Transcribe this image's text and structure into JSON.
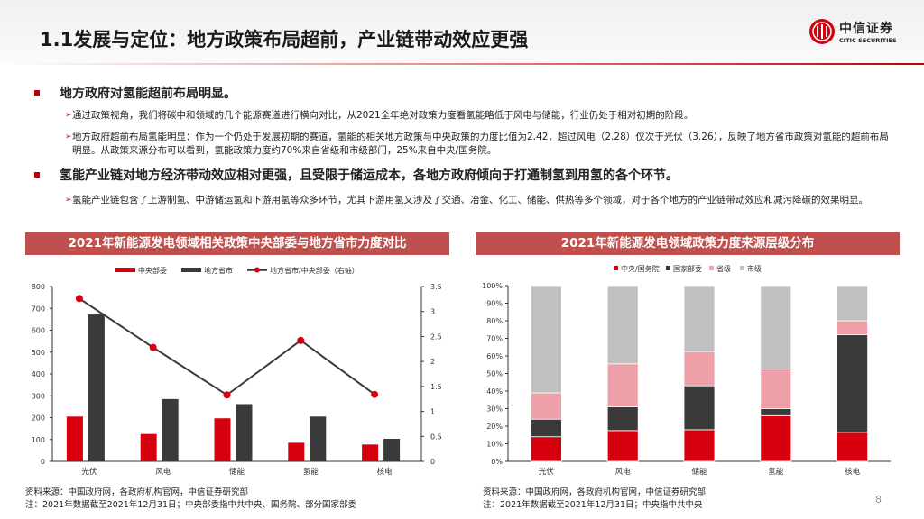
{
  "header": {
    "title": "1.1发展与定位：地方政策布局超前，产业链带动效应更强",
    "logo_cn": "中信证券",
    "logo_en": "CITIC SECURITIES"
  },
  "bullets": [
    {
      "heading": "地方政府对氢能超前布局明显。",
      "items": [
        "通过政策视角，我们将碳中和领域的几个能源赛道进行横向对比，从2021全年绝对政策力度看氢能略低于风电与储能，行业仍处于相对初期的阶段。",
        "地方政府超前布局氢能明显：作为一个仍处于发展初期的赛道，氢能的相关地方政策与中央政策的力度比值为2.42，超过风电（2.28）仅次于光伏（3.26），反映了地方省市政策对氢能的超前布局明显。从政策来源分布可以看到，氢能政策力度约70%来自省级和市级部门，25%来自中央/国务院。"
      ]
    },
    {
      "heading": "氢能产业链对地方经济带动效应相对更强，且受限于储运成本，各地方政府倾向于打通制氢到用氢的各个环节。",
      "items": [
        "氢能产业链包含了上游制氢、中游储运氢和下游用氢等众多环节，尤其下游用氢又涉及了交通、冶金、化工、储能、供热等多个领域，对于各个地方的产业链带动效应和减污降碳的效果明显。"
      ]
    }
  ],
  "chart_data": [
    {
      "type": "bar",
      "title": "2021年新能源发电领域相关政策中央部委与地方省市力度对比",
      "categories": [
        "光伏",
        "风电",
        "储能",
        "氢能",
        "核电"
      ],
      "series": [
        {
          "name": "中央部委",
          "type": "bar",
          "axis": "left",
          "color": "#d7000f",
          "values": [
            205,
            125,
            197,
            85,
            77
          ]
        },
        {
          "name": "地方省市",
          "type": "bar",
          "axis": "left",
          "color": "#3a3a3a",
          "values": [
            672,
            285,
            262,
            205,
            103
          ]
        },
        {
          "name": "地方省市/中央部委（右轴）",
          "type": "line",
          "axis": "right",
          "color": "#3a3a3a",
          "marker_color": "#d7000f",
          "values": [
            3.26,
            2.28,
            1.33,
            2.42,
            1.34
          ]
        }
      ],
      "ylim": [
        0,
        800
      ],
      "yticks": [
        "0",
        "100",
        "200",
        "300",
        "400",
        "500",
        "600",
        "700",
        "800"
      ],
      "y2lim": [
        0,
        3.5
      ],
      "y2ticks": [
        "0",
        "0.5",
        "1",
        "1.5",
        "2",
        "2.5",
        "3",
        "3.5"
      ],
      "legend": "top",
      "grid": false
    },
    {
      "type": "bar",
      "stacked": true,
      "title": "2021年新能源发电领域政策力度来源层级分布",
      "categories": [
        "光伏",
        "风电",
        "储能",
        "氢能",
        "核电"
      ],
      "series": [
        {
          "name": "中央/国务院",
          "color": "#d7000f",
          "values": [
            14,
            17.5,
            18,
            26,
            16.5
          ]
        },
        {
          "name": "国家部委",
          "color": "#3a3a3a",
          "values": [
            10,
            13.5,
            25,
            4,
            55.5
          ]
        },
        {
          "name": "省级",
          "color": "#eea0a8",
          "values": [
            15,
            24.5,
            19.5,
            22.5,
            8
          ]
        },
        {
          "name": "市级",
          "color": "#c0c0c0",
          "values": [
            61,
            44.5,
            37.5,
            47.5,
            20
          ]
        }
      ],
      "ylim": [
        0,
        100
      ],
      "yticks": [
        "0%",
        "10%",
        "20%",
        "30%",
        "40%",
        "50%",
        "60%",
        "70%",
        "80%",
        "90%",
        "100%"
      ],
      "legend": "top",
      "grid": false
    }
  ],
  "footer": {
    "left": [
      "资料来源：中国政府网，各政府机构官网，中信证券研究部",
      "注：2021年数据截至2021年12月31日；中央部委指中共中央、国务院、部分国家部委"
    ],
    "right": [
      "资料来源：中国政府网，各政府机构官网，中信证券研究部",
      "注：2021年数据截至2021年12月31日；中央指中共中央"
    ],
    "page": "8"
  }
}
